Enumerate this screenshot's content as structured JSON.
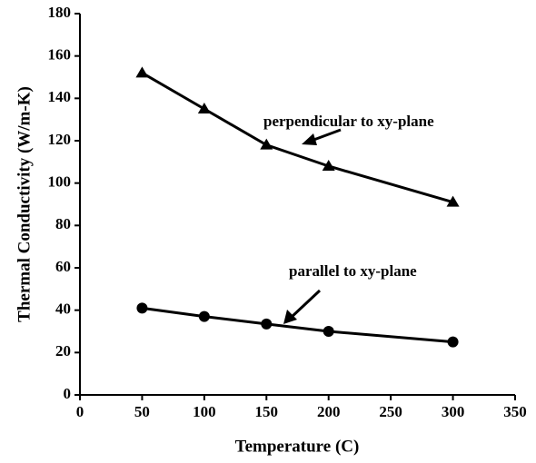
{
  "chart_data": {
    "type": "line",
    "xlabel": "Temperature (C)",
    "ylabel": "Thermal Conductivity (W/m-K)",
    "x": [
      50,
      100,
      150,
      200,
      300
    ],
    "series": [
      {
        "name": "perpendicular to xy-plane",
        "color": "#000000",
        "marker": "triangle",
        "values": [
          152,
          135,
          118,
          108,
          91
        ]
      },
      {
        "name": "parallel to xy-plane",
        "color": "#000000",
        "marker": "circle",
        "values": [
          41,
          37,
          33.5,
          30,
          25
        ]
      }
    ],
    "xlim": [
      0,
      350
    ],
    "xticks": [
      0,
      50,
      100,
      150,
      200,
      250,
      300,
      350
    ],
    "ylim": [
      0,
      180
    ],
    "yticks": [
      0,
      20,
      40,
      60,
      80,
      100,
      120,
      140,
      160,
      180
    ],
    "grid": false
  }
}
